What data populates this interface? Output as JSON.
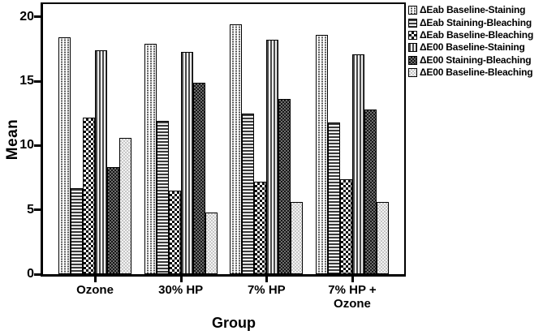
{
  "chart_data": {
    "type": "bar",
    "title": "",
    "xlabel": "Group",
    "ylabel": "Mean",
    "ylim": [
      0,
      21
    ],
    "yticks": [
      0,
      5,
      10,
      15,
      20
    ],
    "grid": false,
    "legend_position": "top-right-outside",
    "categories": [
      "Ozone",
      "30% HP",
      "7% HP",
      "7% HP + Ozone"
    ],
    "series": [
      {
        "name": "ΔEab Baseline-Staining",
        "pattern": "fine-dots",
        "values": [
          18.4,
          17.9,
          19.4,
          18.6
        ]
      },
      {
        "name": "ΔEab Staining-Bleaching",
        "pattern": "horizontal-lines",
        "values": [
          6.7,
          11.9,
          12.5,
          11.8
        ]
      },
      {
        "name": "ΔEab Baseline-Bleaching",
        "pattern": "checkerboard",
        "values": [
          12.2,
          6.5,
          7.2,
          7.4
        ]
      },
      {
        "name": "ΔE00 Baseline-Staining",
        "pattern": "vertical-lines",
        "values": [
          17.4,
          17.3,
          18.2,
          17.1
        ]
      },
      {
        "name": "ΔE00 Staining-Bleaching",
        "pattern": "dark-checker",
        "values": [
          8.3,
          14.9,
          13.6,
          12.8
        ]
      },
      {
        "name": "ΔE00 Baseline-Bleaching",
        "pattern": "light-checker",
        "values": [
          10.6,
          4.8,
          5.6,
          5.6
        ]
      }
    ],
    "colors": {
      "axis": "#000000",
      "background": "#ffffff",
      "bar_outline": "#000000"
    }
  }
}
